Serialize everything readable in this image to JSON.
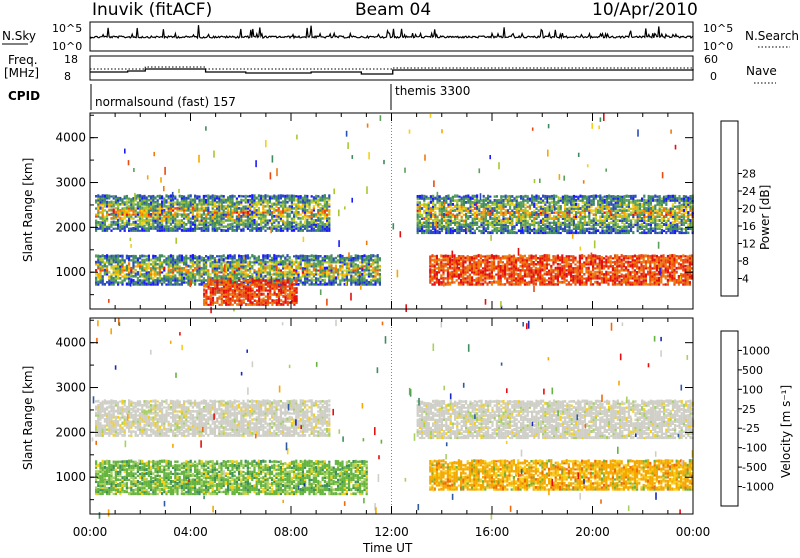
{
  "header": {
    "station": "Inuvik (fitACF)",
    "beam": "Beam 04",
    "date": "10/Apr/2010"
  },
  "top_panels": {
    "nsky_label": "N.Sky",
    "nsky_ticks": [
      "10^5",
      "10^0"
    ],
    "nsearch_label": "N.Search",
    "nsearch_ticks": [
      "10^5",
      "10^0"
    ],
    "freq_label_1": "Freq.",
    "freq_label_2": "[MHz]",
    "freq_ticks": [
      "18",
      "8"
    ],
    "nave_label": "Nave",
    "nave_ticks": [
      "60",
      "0"
    ],
    "cpid_label": "CPID",
    "cpid_segments": [
      {
        "name": "normalsound (fast) 157",
        "start_hour": 0,
        "end_hour": 12
      },
      {
        "name": "themis 3300",
        "start_hour": 12,
        "end_hour": 24
      }
    ]
  },
  "chart_data": [
    {
      "type": "heatmap",
      "title": "",
      "ylabel": "Slant Range [km]",
      "xlabel": "",
      "xlim": [
        0,
        24
      ],
      "ylim": [
        180,
        4550
      ],
      "y_ticks": [
        "1000",
        "2000",
        "3000",
        "4000"
      ],
      "colorbar_label": "Power [dB]",
      "colorbar_ticks": [
        "4",
        "8",
        "12",
        "16",
        "20",
        "24",
        "28"
      ],
      "colorbar_colors": [
        "#1a1aff",
        "#2b4db8",
        "#3f8a5e",
        "#5aa05a",
        "#a8c832",
        "#f5d018",
        "#f5a800",
        "#ef7a0c",
        "#ea4a10",
        "#e41010"
      ],
      "bands": [
        {
          "t0": 0.2,
          "t1": 9.5,
          "r0": 1900,
          "r1": 2700,
          "level": "mixed"
        },
        {
          "t0": 0.2,
          "t1": 11.5,
          "r0": 700,
          "r1": 1350,
          "level": "mixed"
        },
        {
          "t0": 4.5,
          "t1": 8.2,
          "r0": 250,
          "r1": 800,
          "level": "high"
        },
        {
          "t0": 13.0,
          "t1": 24.0,
          "r0": 1850,
          "r1": 2700,
          "level": "mixed"
        },
        {
          "t0": 13.5,
          "t1": 24.0,
          "r0": 700,
          "r1": 1350,
          "level": "high"
        }
      ]
    },
    {
      "type": "heatmap",
      "title": "",
      "ylabel": "Slant Range [km]",
      "xlabel": "Time UT",
      "xlim": [
        0,
        24
      ],
      "ylim": [
        180,
        4550
      ],
      "y_ticks": [
        "1000",
        "2000",
        "3000",
        "4000"
      ],
      "x_ticks": [
        "00:00",
        "04:00",
        "08:00",
        "12:00",
        "16:00",
        "20:00",
        "00:00"
      ],
      "colorbar_label": "Velocity [m s⁻¹]",
      "colorbar_ticks": [
        "1000",
        "500",
        "100",
        "25",
        "-25",
        "-100",
        "-500",
        "-1000"
      ],
      "colorbar_colors": [
        "#1a2ab8",
        "#2f5aa0",
        "#3d8f62",
        "#66b440",
        "#a8d060",
        "#cfcfc8",
        "#f5d018",
        "#f5a800",
        "#ef6a0c",
        "#e41010"
      ],
      "bands": [
        {
          "t0": 0.2,
          "t1": 9.5,
          "r0": 1900,
          "r1": 2700,
          "level": "gray"
        },
        {
          "t0": 0.2,
          "t1": 11.0,
          "r0": 600,
          "r1": 1350,
          "level": "green"
        },
        {
          "t0": 13.0,
          "t1": 24.0,
          "r0": 1850,
          "r1": 2700,
          "level": "gray"
        },
        {
          "t0": 13.5,
          "t1": 24.0,
          "r0": 700,
          "r1": 1350,
          "level": "orange"
        }
      ]
    }
  ]
}
